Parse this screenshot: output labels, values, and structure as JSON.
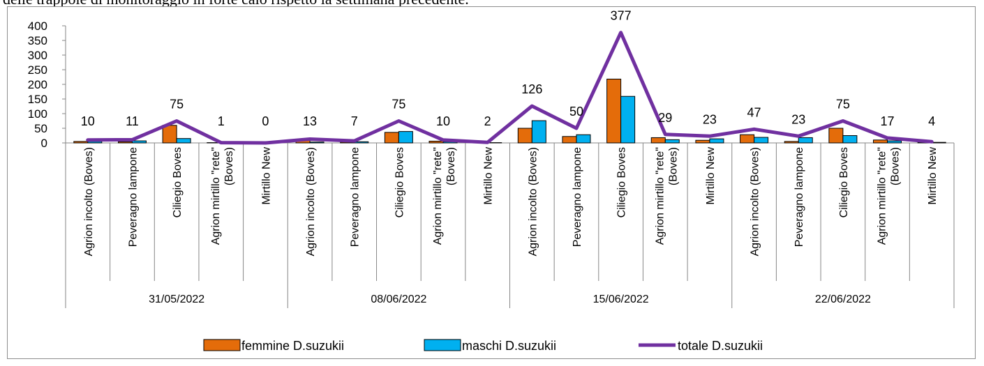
{
  "document": {
    "visible_text_fragment": "delle trappole di monitoraggio in forte calo rispetto la settimana precedente."
  },
  "chart_data": {
    "type": "bar",
    "ylim": [
      0,
      400
    ],
    "yticks": [
      0,
      50,
      100,
      150,
      200,
      250,
      300,
      350,
      400
    ],
    "grid": false,
    "legend_position": "bottom",
    "groups": [
      "31/05/2022",
      "08/06/2022",
      "15/06/2022",
      "22/06/2022"
    ],
    "categories": [
      "Agrion incolto (Boves)",
      "Peveragno lampone",
      "Ciliegio Boves",
      "Agrion mirtillo \"rete\" (Boves)",
      "Mirtillo New",
      "Agrion incolto (Boves)",
      "Peveragno lampone",
      "Ciliegio Boves",
      "Agrion mirtillo \"rete\" (Boves)",
      "Mirtillo New",
      "Agrion incolto (Boves)",
      "Peveragno lampone",
      "Ciliegio Boves",
      "Agrion mirtillo \"rete\" (Boves)",
      "Mirtillo New",
      "Agrion incolto (Boves)",
      "Peveragno lampone",
      "Ciliegio Boves",
      "Agrion mirtillo \"rete\" (Boves)",
      "Mirtillo New"
    ],
    "series": [
      {
        "name": "femmine D.suzukii",
        "kind": "bar",
        "color": "#E46C0A",
        "values": [
          5,
          4,
          60,
          1,
          0,
          10,
          3,
          36,
          6,
          1,
          50,
          22,
          218,
          18,
          9,
          28,
          5,
          50,
          10,
          2
        ]
      },
      {
        "name": "maschi D.suzukii",
        "kind": "bar",
        "color": "#00B0F0",
        "values": [
          5,
          7,
          15,
          0,
          0,
          3,
          4,
          39,
          4,
          1,
          76,
          28,
          159,
          11,
          14,
          19,
          18,
          25,
          7,
          2
        ]
      },
      {
        "name": "totale D.suzukii",
        "kind": "line",
        "color": "#7030A0",
        "values": [
          10,
          11,
          75,
          1,
          0,
          13,
          7,
          75,
          10,
          2,
          126,
          50,
          377,
          29,
          23,
          47,
          23,
          75,
          17,
          4
        ]
      }
    ]
  }
}
